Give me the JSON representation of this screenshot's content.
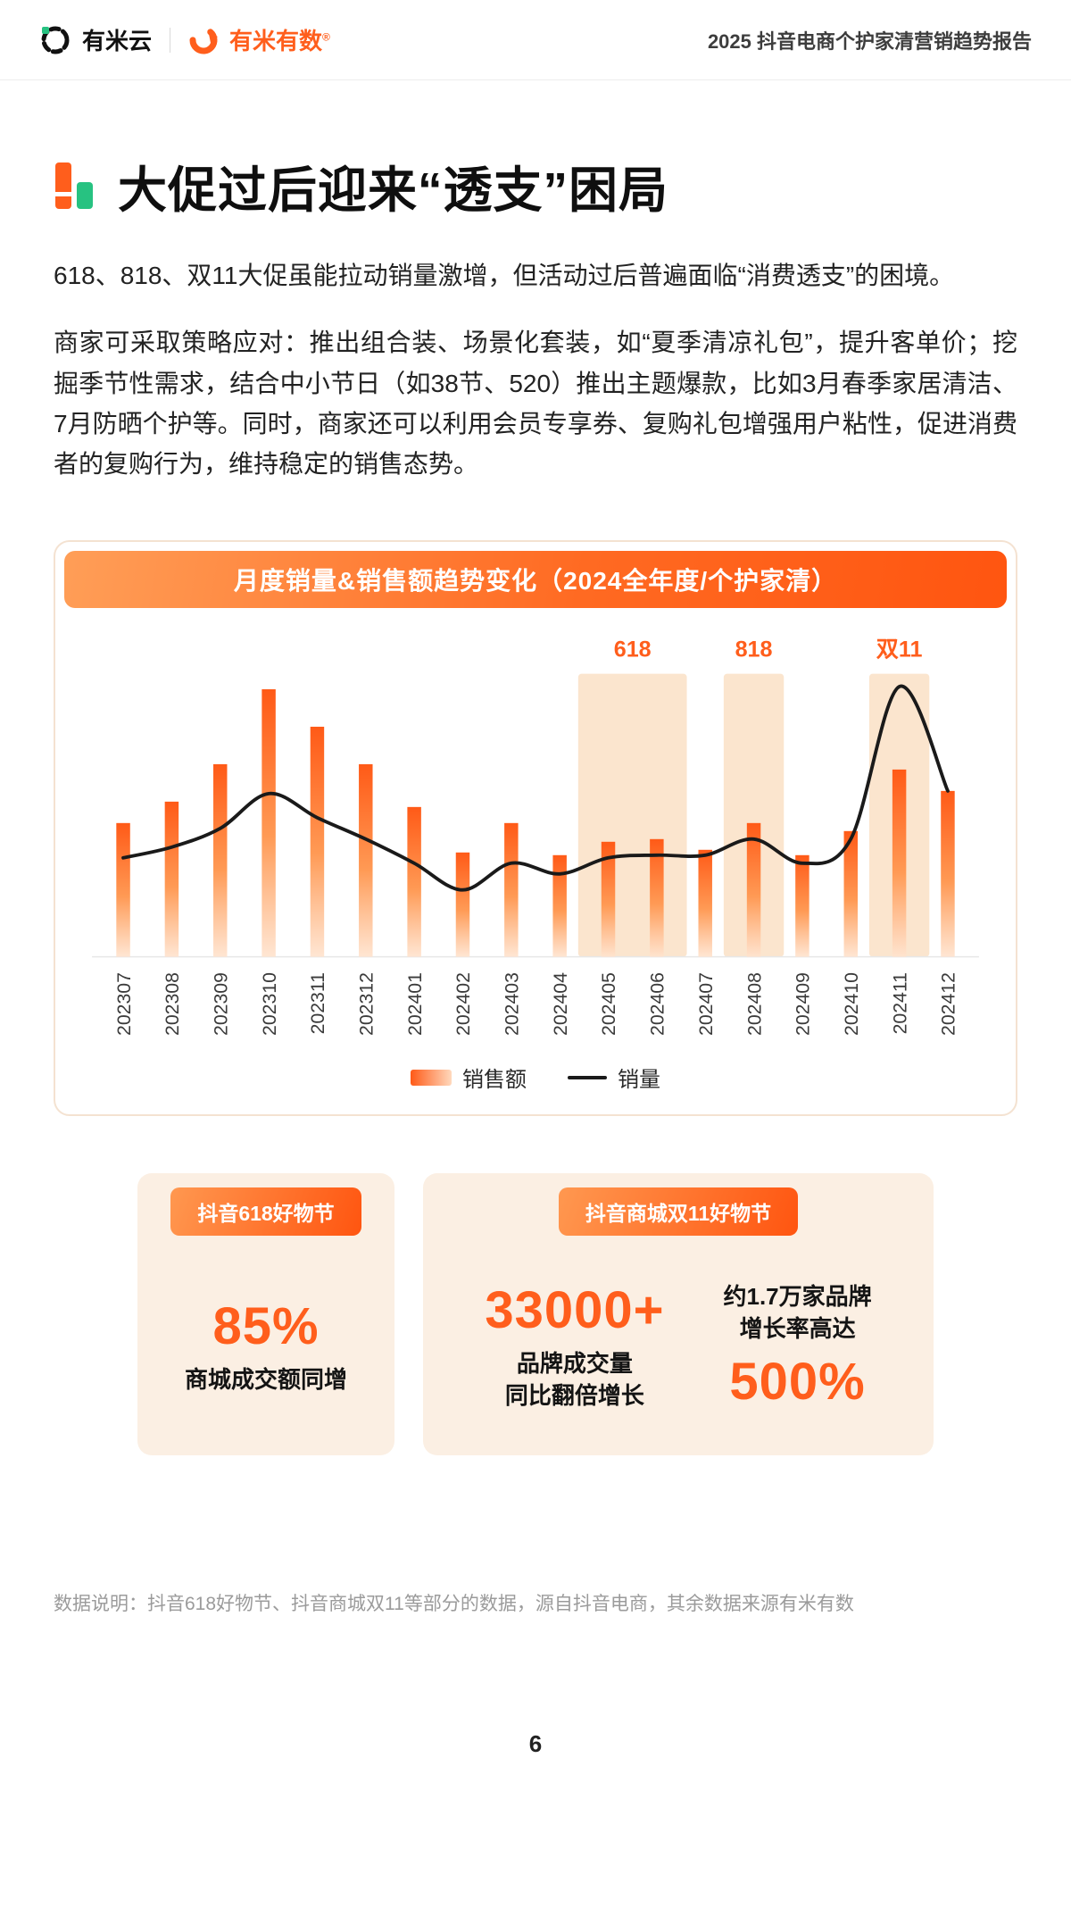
{
  "header": {
    "brand_left": "有米云",
    "brand_right": "有米有数",
    "brand_mark": "®",
    "report_title": "2025 抖音电商个护家清营销趋势报告"
  },
  "page": {
    "title": "大促过后迎来“透支”困局",
    "paragraph1": "618、818、双11大促虽能拉动销量激增，但活动过后普遍面临“消费透支”的困境。",
    "paragraph2": "商家可采取策略应对：推出组合装、场景化套装，如“夏季清凉礼包”，提升客单价；挖掘季节性需求，结合中小节日（如38节、520）推出主题爆款，比如3月春季家居清洁、7月防晒个护等。同时，商家还可以利用会员专享券、复购礼包增强用户粘性，促进消费者的复购行为，维持稳定的销售态势。",
    "footnote": "数据说明：抖音618好物节、抖音商城双11等部分的数据，源自抖音电商，其余数据来源有米有数",
    "page_number": "6"
  },
  "chart_data": {
    "type": "bar",
    "title": "月度销量&销售额趋势变化（2024全年度/个护家清）",
    "categories": [
      "202307",
      "202308",
      "202309",
      "202310",
      "202311",
      "202312",
      "202401",
      "202402",
      "202403",
      "202404",
      "202405",
      "202406",
      "202407",
      "202408",
      "202409",
      "202410",
      "202411",
      "202412"
    ],
    "series": [
      {
        "name": "销售额",
        "type": "bar",
        "values": [
          50,
          58,
          72,
          100,
          86,
          72,
          56,
          39,
          50,
          38,
          43,
          44,
          40,
          50,
          38,
          47,
          70,
          62
        ]
      },
      {
        "name": "销量",
        "type": "line",
        "values": [
          37,
          41,
          48,
          61,
          52,
          44,
          35,
          25,
          35,
          31,
          37,
          38,
          38,
          44,
          35,
          44,
          101,
          62
        ]
      }
    ],
    "bands": [
      {
        "label": "618",
        "from": "202405",
        "to": "202406"
      },
      {
        "label": "818",
        "from": "202408",
        "to": "202408"
      },
      {
        "label": "双11",
        "from": "202411",
        "to": "202411"
      }
    ],
    "ylim": [
      0,
      110
    ],
    "legend_position": "bottom",
    "grid": false,
    "colors": {
      "bar_top": "#FF5A17",
      "bar_mid": "#FF9A55",
      "bar_bottom": "#FFE3CE",
      "line": "#1a1a1a",
      "band": "#FBE5CE",
      "band_label": "#FF5E1C",
      "accent": "#FF5E1C"
    }
  },
  "stats": {
    "card1": {
      "label": "抖音618好物节",
      "value": "85%",
      "desc": "商城成交额同增"
    },
    "card2": {
      "label": "抖音商城双11好物节",
      "value_left": "33000+",
      "desc_left1": "品牌成交量",
      "desc_left2": "同比翻倍增长",
      "desc_right1": "约1.7万家品牌",
      "desc_right2": "增长率高达",
      "value_right": "500%"
    }
  }
}
